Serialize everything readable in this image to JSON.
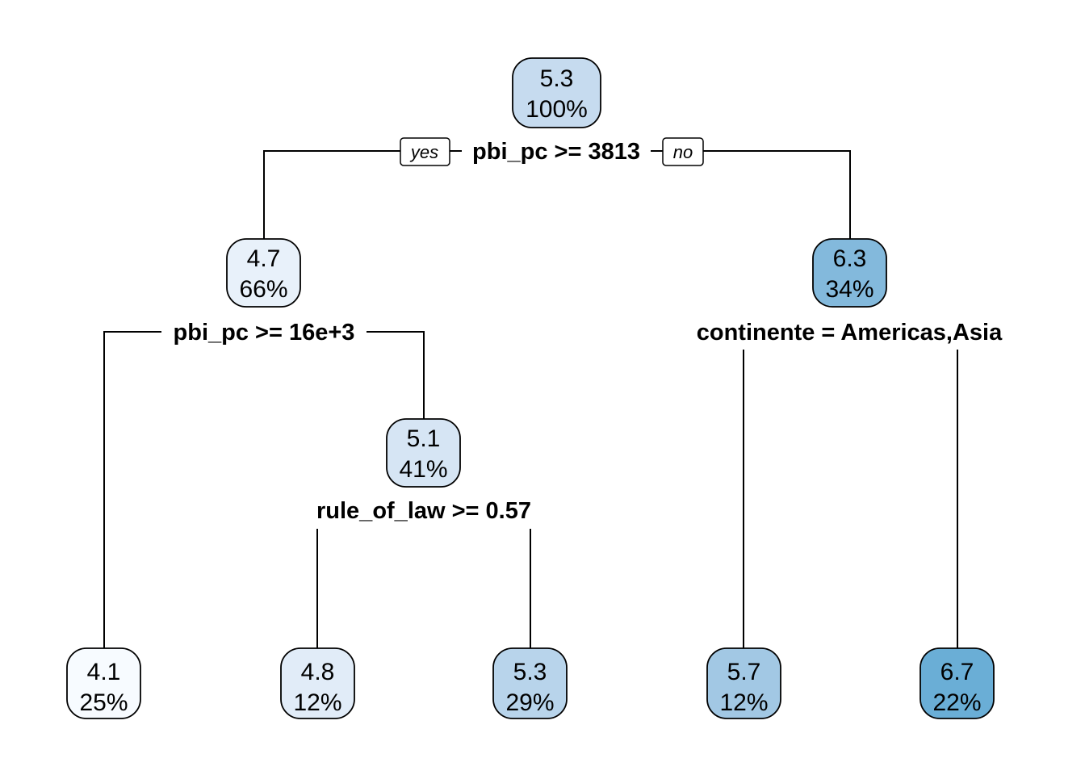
{
  "tree": {
    "branch_tags": {
      "yes": "yes",
      "no": "no"
    },
    "nodes": {
      "root": {
        "value": "5.3",
        "pct": "100%",
        "color": "#c6dbef"
      },
      "n2": {
        "value": "4.7",
        "pct": "66%",
        "color": "#e8f1fa"
      },
      "n3": {
        "value": "6.3",
        "pct": "34%",
        "color": "#83b9dc"
      },
      "n5": {
        "value": "5.1",
        "pct": "41%",
        "color": "#d6e5f4"
      },
      "leaf1": {
        "value": "4.1",
        "pct": "25%",
        "color": "#f7fbff"
      },
      "leaf2": {
        "value": "4.8",
        "pct": "12%",
        "color": "#e1ecf8"
      },
      "leaf3": {
        "value": "5.3",
        "pct": "29%",
        "color": "#b8d4eb"
      },
      "leaf4": {
        "value": "5.7",
        "pct": "12%",
        "color": "#a2c8e4"
      },
      "leaf5": {
        "value": "6.7",
        "pct": "22%",
        "color": "#6aaed6"
      }
    },
    "splits": {
      "root": "pbi_pc >= 3813",
      "n2": "pbi_pc >= 16e+3",
      "n3": "continente = Americas,Asia",
      "n5": "rule_of_law >= 0.57"
    }
  }
}
